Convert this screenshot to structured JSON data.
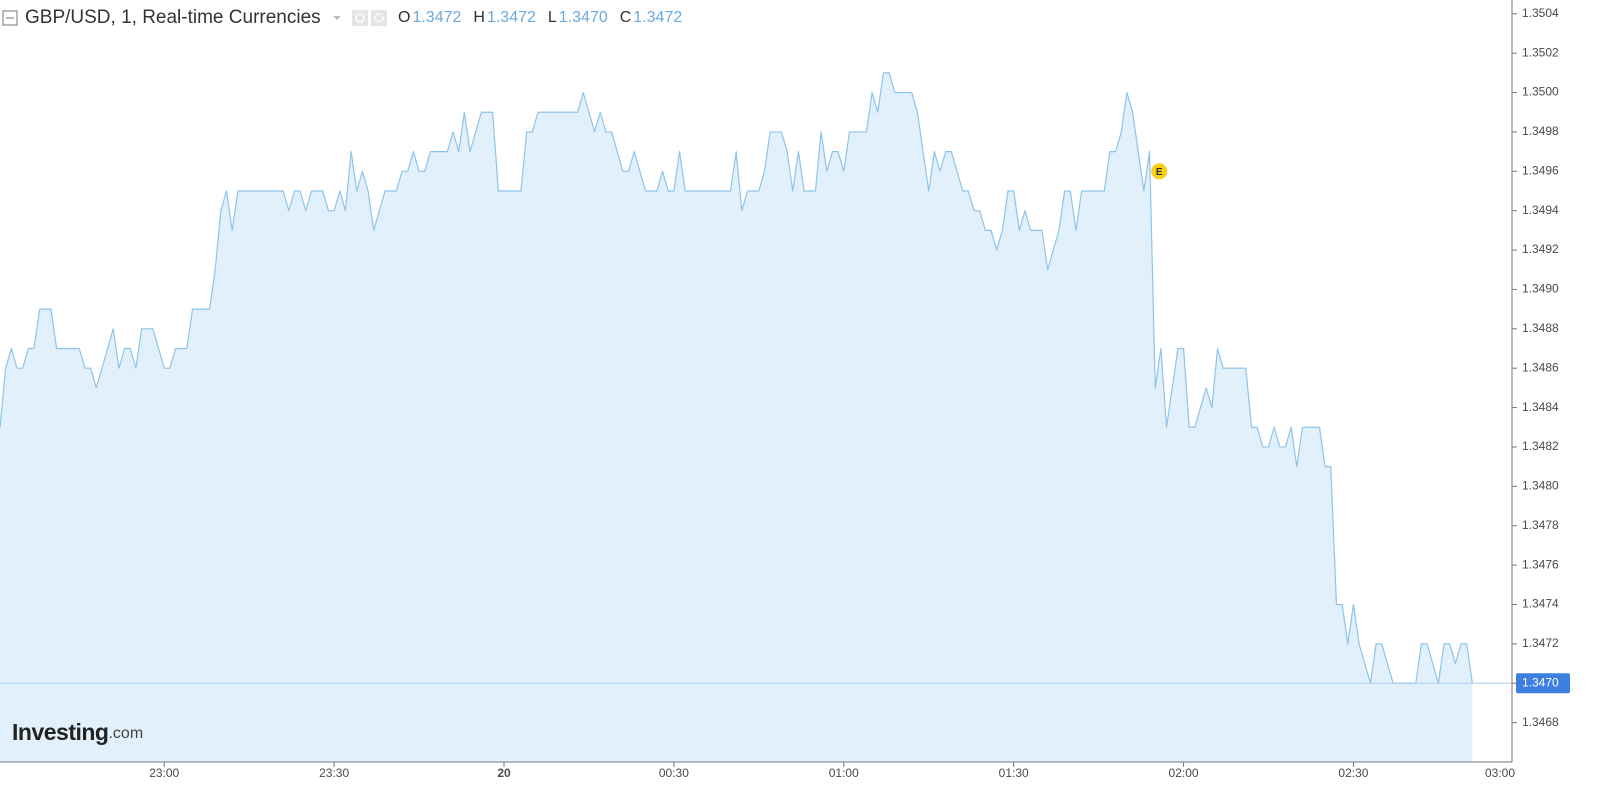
{
  "header": {
    "title": "GBP/USD, 1, Real-time Currencies",
    "ohlc": [
      {
        "label": "O",
        "value": "1.3472"
      },
      {
        "label": "H",
        "value": "1.3472"
      },
      {
        "label": "L",
        "value": "1.3470"
      },
      {
        "label": "C",
        "value": "1.3472"
      }
    ]
  },
  "logo": {
    "name": "Investing",
    "suffix": ".com"
  },
  "chart_data": {
    "type": "area",
    "color": "#8ec4ea",
    "fill": "#e1f0fa",
    "x": [
      "22:31",
      "22:32",
      "22:33",
      "22:34",
      "22:35",
      "22:36",
      "22:37",
      "22:38",
      "22:40",
      "22:41",
      "22:45",
      "22:46",
      "22:47",
      "22:48",
      "22:50",
      "22:51",
      "22:52",
      "22:53",
      "22:54",
      "22:55",
      "22:56",
      "22:58",
      "23:00",
      "23:01",
      "23:02",
      "23:04",
      "23:05",
      "23:08",
      "23:09",
      "23:10",
      "23:11",
      "23:12",
      "23:13",
      "23:21",
      "23:22",
      "23:23",
      "23:24",
      "23:25",
      "23:26",
      "23:28",
      "23:29",
      "23:30",
      "23:31",
      "23:32",
      "23:33",
      "23:34",
      "23:35",
      "23:36",
      "23:37",
      "23:39",
      "23:41",
      "23:42",
      "23:43",
      "23:44",
      "23:45",
      "23:46",
      "23:47",
      "23:50",
      "23:51",
      "23:52",
      "23:53",
      "23:54",
      "23:56",
      "23:58",
      "23:59",
      "00:03",
      "00:04",
      "00:05",
      "00:06",
      "00:13",
      "00:14",
      "00:15",
      "00:16",
      "00:17",
      "00:18",
      "00:19",
      "00:20",
      "00:21",
      "00:22",
      "00:23",
      "00:24",
      "00:25",
      "00:27",
      "00:28",
      "00:29",
      "00:30",
      "00:31",
      "00:32",
      "00:40",
      "00:41",
      "00:42",
      "00:43",
      "00:45",
      "00:46",
      "00:47",
      "00:49",
      "00:50",
      "00:51",
      "00:52",
      "00:53",
      "00:55",
      "00:56",
      "00:57",
      "00:58",
      "00:59",
      "01:00",
      "01:01",
      "01:04",
      "01:05",
      "01:06",
      "01:07",
      "01:08",
      "01:09",
      "01:12",
      "01:13",
      "01:14",
      "01:15",
      "01:16",
      "01:17",
      "01:18",
      "01:19",
      "01:20",
      "01:21",
      "01:22",
      "01:23",
      "01:24",
      "01:25",
      "01:26",
      "01:27",
      "01:28",
      "01:29",
      "01:30",
      "01:31",
      "01:32",
      "01:33",
      "01:35",
      "01:36",
      "01:38",
      "01:39",
      "01:40",
      "01:41",
      "01:42",
      "01:46",
      "01:47",
      "01:48",
      "01:49",
      "01:50",
      "01:51",
      "01:52",
      "01:53",
      "01:54",
      "01:55",
      "01:56",
      "01:57",
      "01:58",
      "01:59",
      "02:00",
      "02:01",
      "02:02",
      "02:03",
      "02:04",
      "02:05",
      "02:06",
      "02:07",
      "02:11",
      "02:12",
      "02:13",
      "02:14",
      "02:15",
      "02:16",
      "02:17",
      "02:18",
      "02:19",
      "02:20",
      "02:21",
      "02:24",
      "02:25",
      "02:26",
      "02:27",
      "02:28",
      "02:29",
      "02:30",
      "02:31",
      "02:32",
      "02:33",
      "02:34",
      "02:35",
      "02:36",
      "02:37",
      "02:41",
      "02:42",
      "02:43",
      "02:44",
      "02:45",
      "02:46",
      "02:47",
      "02:48",
      "02:49",
      "02:50",
      "02:51"
    ],
    "values": [
      1.3483,
      1.3486,
      1.3487,
      1.3486,
      1.3486,
      1.3487,
      1.3487,
      1.3489,
      1.3489,
      1.3487,
      1.3487,
      1.3486,
      1.3486,
      1.3485,
      1.3487,
      1.3488,
      1.3486,
      1.3487,
      1.3487,
      1.3486,
      1.3488,
      1.3488,
      1.3486,
      1.3486,
      1.3487,
      1.3487,
      1.3489,
      1.3489,
      1.3491,
      1.3494,
      1.3495,
      1.3493,
      1.3495,
      1.3495,
      1.3494,
      1.3495,
      1.3495,
      1.3494,
      1.3495,
      1.3495,
      1.3494,
      1.3494,
      1.3495,
      1.3494,
      1.3497,
      1.3495,
      1.3496,
      1.3495,
      1.3493,
      1.3495,
      1.3495,
      1.3496,
      1.3496,
      1.3497,
      1.3496,
      1.3496,
      1.3497,
      1.3497,
      1.3498,
      1.3497,
      1.3499,
      1.3497,
      1.3499,
      1.3499,
      1.3495,
      1.3495,
      1.3498,
      1.3498,
      1.3499,
      1.3499,
      1.35,
      1.3499,
      1.3498,
      1.3499,
      1.3498,
      1.3498,
      1.3497,
      1.3496,
      1.3496,
      1.3497,
      1.3496,
      1.3495,
      1.3495,
      1.3496,
      1.3495,
      1.3495,
      1.3497,
      1.3495,
      1.3495,
      1.3497,
      1.3494,
      1.3495,
      1.3495,
      1.3496,
      1.3498,
      1.3498,
      1.3497,
      1.3495,
      1.3497,
      1.3495,
      1.3495,
      1.3498,
      1.3496,
      1.3497,
      1.3497,
      1.3496,
      1.3498,
      1.3498,
      1.35,
      1.3499,
      1.3501,
      1.3501,
      1.35,
      1.35,
      1.3499,
      1.3497,
      1.3495,
      1.3497,
      1.3496,
      1.3497,
      1.3497,
      1.3496,
      1.3495,
      1.3495,
      1.3494,
      1.3494,
      1.3493,
      1.3493,
      1.3492,
      1.3493,
      1.3495,
      1.3495,
      1.3493,
      1.3494,
      1.3493,
      1.3493,
      1.3491,
      1.3493,
      1.3495,
      1.3495,
      1.3493,
      1.3495,
      1.3495,
      1.3497,
      1.3497,
      1.3498,
      1.35,
      1.3499,
      1.3497,
      1.3495,
      1.3497,
      1.3485,
      1.3487,
      1.3483,
      1.3485,
      1.3487,
      1.3487,
      1.3483,
      1.3483,
      1.3484,
      1.3485,
      1.3484,
      1.3487,
      1.3486,
      1.3486,
      1.3483,
      1.3483,
      1.3482,
      1.3482,
      1.3483,
      1.3482,
      1.3482,
      1.3483,
      1.3481,
      1.3483,
      1.3483,
      1.3481,
      1.3481,
      1.3474,
      1.3474,
      1.3472,
      1.3474,
      1.3472,
      1.3471,
      1.347,
      1.3472,
      1.3472,
      1.3471,
      1.347,
      1.347,
      1.3472,
      1.3472,
      1.3471,
      1.347,
      1.3472,
      1.3472,
      1.3471,
      1.3472,
      1.3472,
      1.347
    ],
    "xlim": [
      "22:31",
      "02:58"
    ],
    "xticks": [
      "23:00",
      "23:30",
      {
        "value": "00:00",
        "label": "20"
      },
      "00:30",
      "01:00",
      "01:30",
      "02:00",
      "02:30",
      "03:00"
    ],
    "ylim": [
      1.3466,
      1.35047
    ],
    "yticks": [
      1.3468,
      {
        "value": 1.347,
        "label": "1.3470"
      },
      1.3472,
      1.3474,
      1.3476,
      1.3478,
      {
        "value": 1.348,
        "label": "1.3480"
      },
      1.3482,
      1.3484,
      1.3486,
      1.3488,
      {
        "value": 1.349,
        "label": "1.3490"
      },
      1.3492,
      1.3494,
      1.3496,
      1.3498,
      {
        "value": 1.35,
        "label": "1.3500"
      },
      1.3502,
      1.3504
    ],
    "last_price": {
      "value": 1.347,
      "label": "1.3470"
    },
    "annotations": [
      {
        "x": "01:55",
        "value": 1.3496,
        "text": "E"
      }
    ]
  }
}
